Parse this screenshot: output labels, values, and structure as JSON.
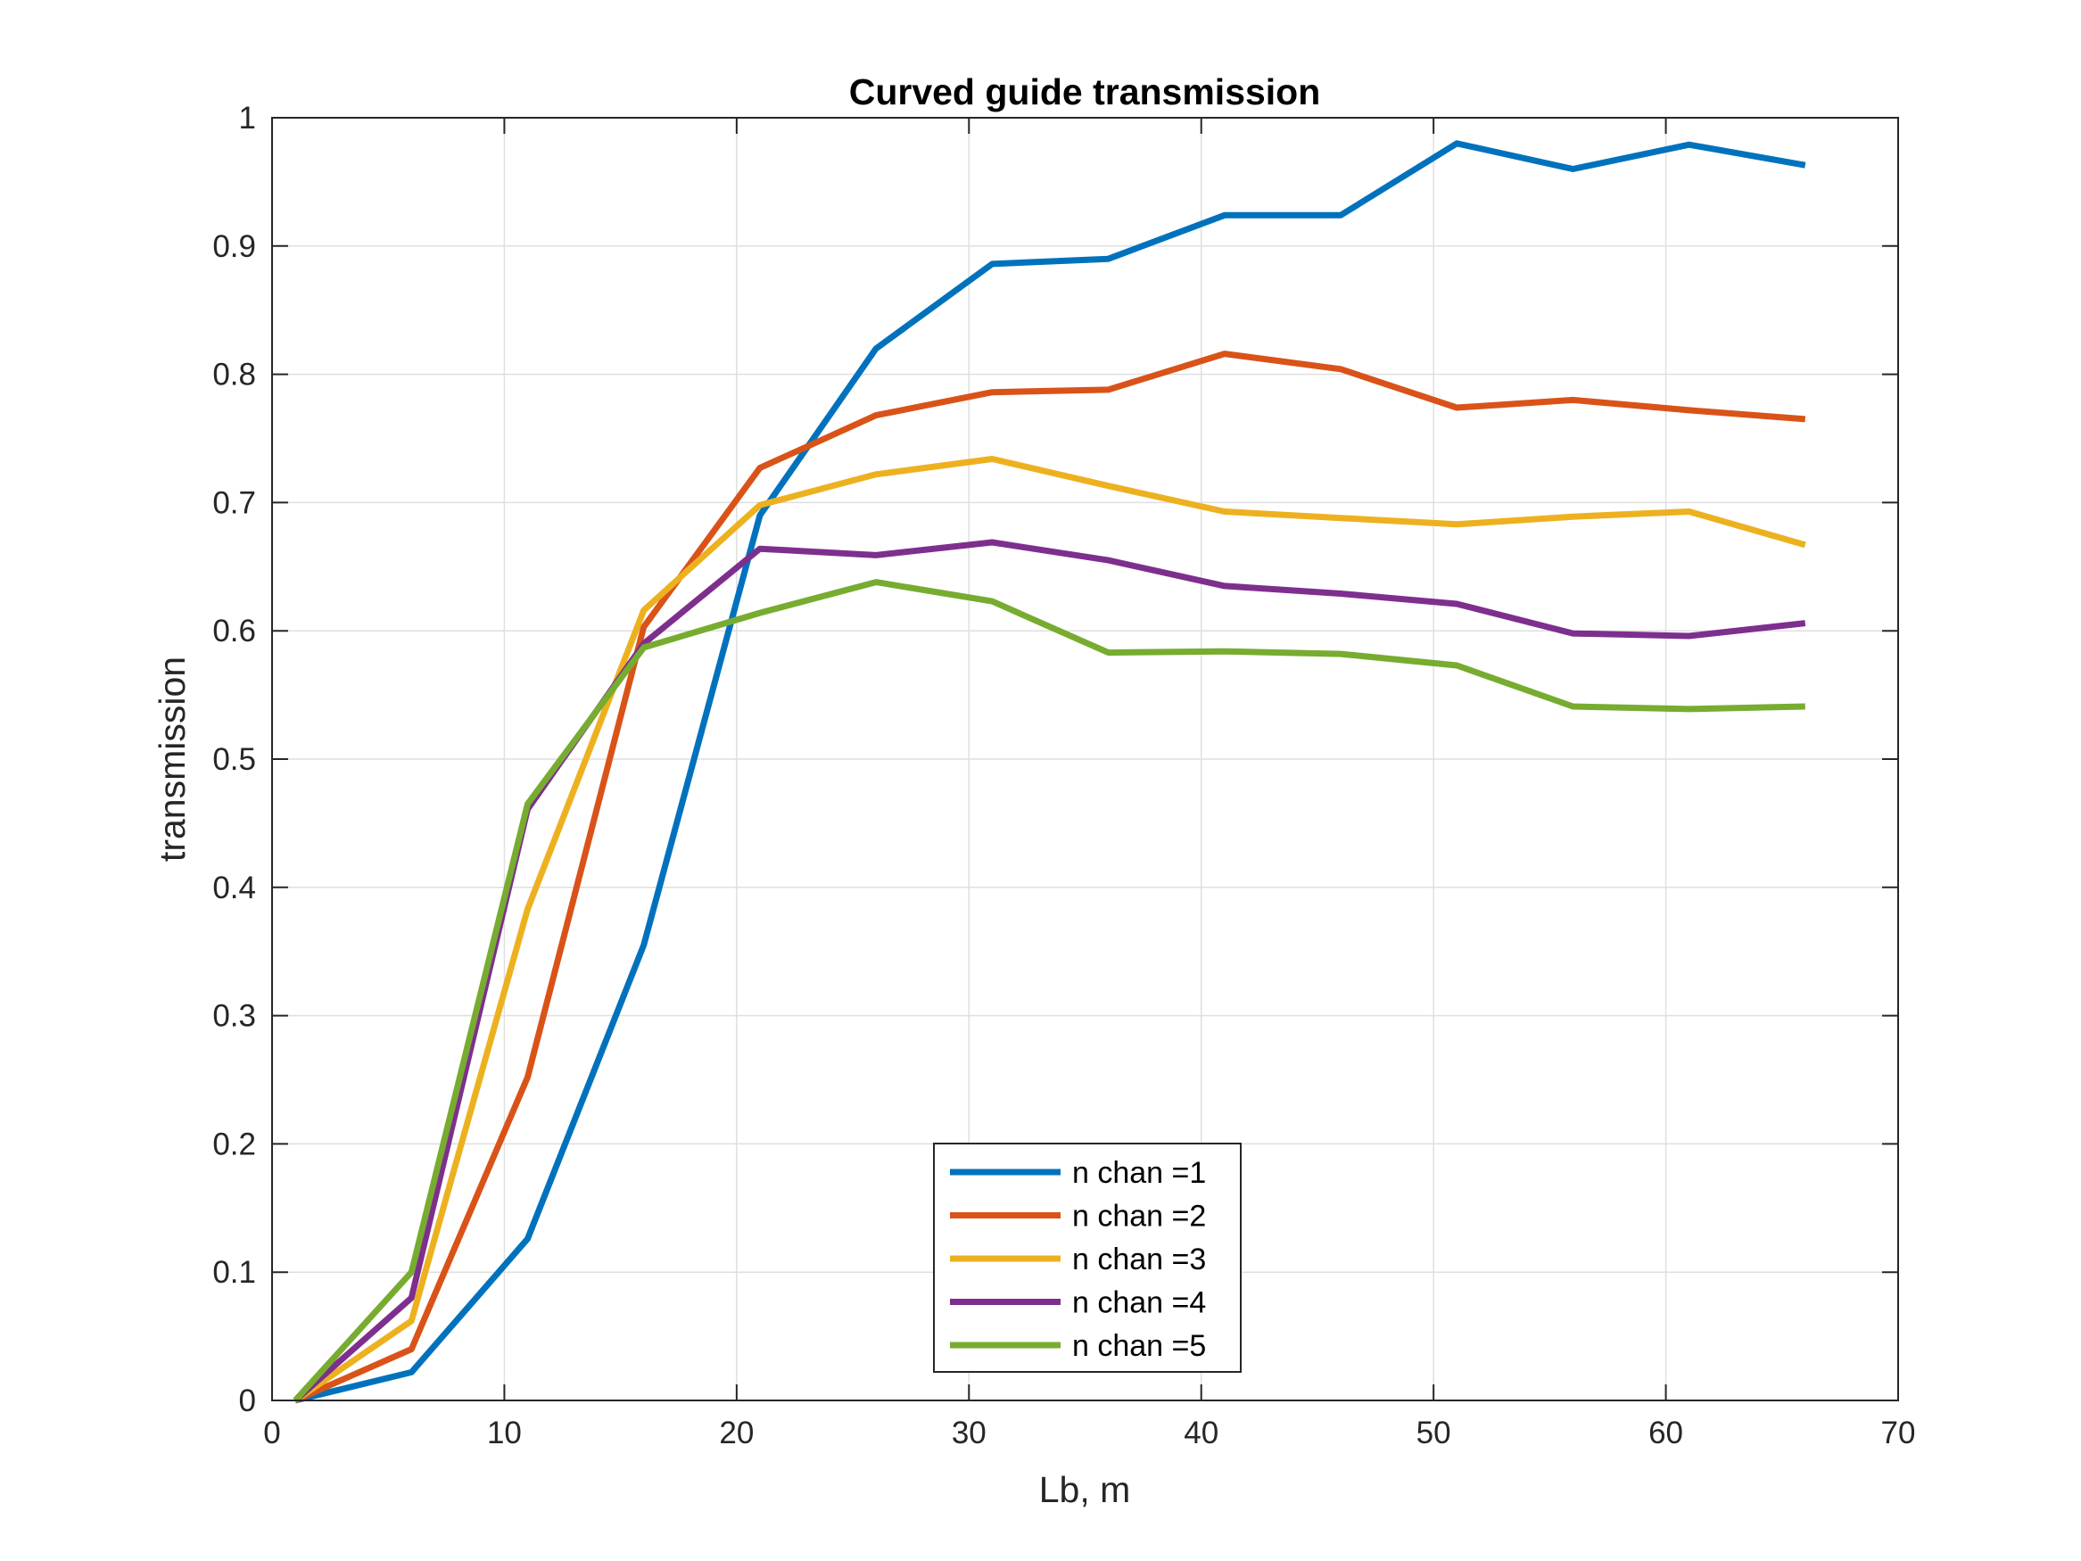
{
  "chart_data": {
    "type": "line",
    "title": "Curved guide transmission",
    "xlabel": "Lb, m",
    "ylabel": "transmission",
    "xlim": [
      0,
      70
    ],
    "ylim": [
      0,
      1
    ],
    "xticks": [
      0,
      10,
      20,
      30,
      40,
      50,
      60,
      70
    ],
    "yticks": [
      0,
      0.1,
      0.2,
      0.3,
      0.4,
      0.5,
      0.6,
      0.7,
      0.8,
      0.9,
      1
    ],
    "xtick_labels": [
      "0",
      "10",
      "20",
      "30",
      "40",
      "50",
      "60",
      "70"
    ],
    "ytick_labels": [
      "0",
      "0.1",
      "0.2",
      "0.3",
      "0.4",
      "0.5",
      "0.6",
      "0.7",
      "0.8",
      "0.9",
      "1"
    ],
    "grid": true,
    "legend_position": "bottom-center",
    "x": [
      1,
      6,
      11,
      16,
      21,
      26,
      31,
      36,
      41,
      46,
      51,
      56,
      61,
      66
    ],
    "series": [
      {
        "name": "n chan =1",
        "color": "#0072BD",
        "values": [
          0,
          0.022,
          0.126,
          0.355,
          0.69,
          0.82,
          0.886,
          0.89,
          0.924,
          0.924,
          0.98,
          0.96,
          0.979,
          0.963
        ]
      },
      {
        "name": "n chan =2",
        "color": "#D95319",
        "values": [
          0,
          0.04,
          0.252,
          0.603,
          0.727,
          0.768,
          0.786,
          0.788,
          0.816,
          0.804,
          0.774,
          0.78,
          0.772,
          0.765
        ]
      },
      {
        "name": "n chan =3",
        "color": "#EDB120",
        "values": [
          0,
          0.062,
          0.383,
          0.616,
          0.698,
          0.722,
          0.734,
          0.713,
          0.693,
          0.688,
          0.683,
          0.689,
          0.693,
          0.667
        ]
      },
      {
        "name": "n chan =4",
        "color": "#7E2F8E",
        "values": [
          0,
          0.08,
          0.461,
          0.59,
          0.664,
          0.659,
          0.669,
          0.655,
          0.635,
          0.629,
          0.621,
          0.598,
          0.596,
          0.606
        ]
      },
      {
        "name": "n chan =5",
        "color": "#77AC30",
        "values": [
          0,
          0.1,
          0.465,
          0.587,
          0.614,
          0.638,
          0.623,
          0.583,
          0.584,
          0.582,
          0.573,
          0.541,
          0.539,
          0.541
        ]
      }
    ]
  }
}
